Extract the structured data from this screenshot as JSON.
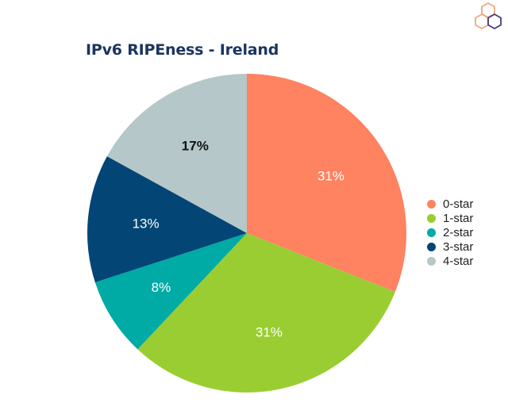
{
  "chart_data": {
    "type": "pie",
    "title": "IPv6 RIPEness - Ireland",
    "categories": [
      "0-star",
      "1-star",
      "2-star",
      "3-star",
      "4-star"
    ],
    "values": [
      31,
      31,
      8,
      13,
      17
    ],
    "data_labels": [
      "31%",
      "31%",
      "8%",
      "13%",
      "17%"
    ],
    "colors": [
      "#ff8261",
      "#9acd32",
      "#00aaa5",
      "#034676",
      "#b5c7c8"
    ],
    "label_colors": [
      "#ffffff",
      "#ffffff",
      "#ffffff",
      "#ffffff",
      "#111111"
    ],
    "label_bold": [
      false,
      false,
      false,
      false,
      true
    ],
    "start_angle": "12 o'clock",
    "direction": "clockwise",
    "legend": "right"
  },
  "logo": {
    "icon": "ripe-ncc-hexagon-logo",
    "colors": [
      "#f0a77e",
      "#4a3a7a"
    ]
  }
}
